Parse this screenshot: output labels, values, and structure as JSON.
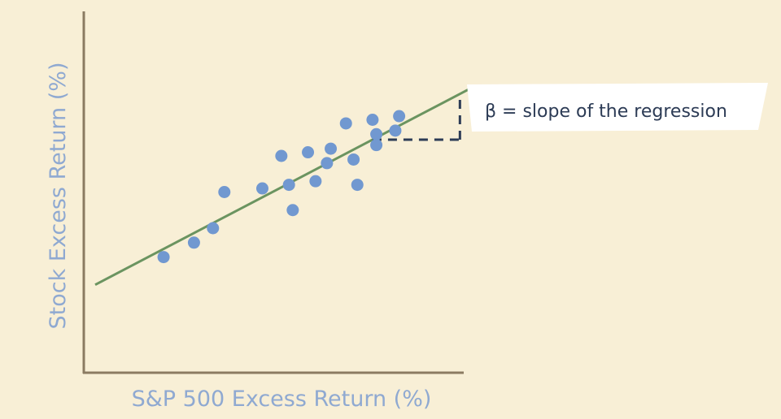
{
  "chart_data": {
    "type": "scatter",
    "xlabel": "S&P 500 Excess Return (%)",
    "ylabel": "Stock Excess Return (%)",
    "xlim": [
      0,
      100
    ],
    "ylim": [
      0,
      100
    ],
    "grid": false,
    "points": [
      {
        "x": 21,
        "y": 32
      },
      {
        "x": 29,
        "y": 36
      },
      {
        "x": 34,
        "y": 40
      },
      {
        "x": 37,
        "y": 50
      },
      {
        "x": 47,
        "y": 51
      },
      {
        "x": 52,
        "y": 60
      },
      {
        "x": 54,
        "y": 52
      },
      {
        "x": 55,
        "y": 45
      },
      {
        "x": 59,
        "y": 61
      },
      {
        "x": 61,
        "y": 53
      },
      {
        "x": 64,
        "y": 58
      },
      {
        "x": 65,
        "y": 62
      },
      {
        "x": 69,
        "y": 69
      },
      {
        "x": 71,
        "y": 59
      },
      {
        "x": 72,
        "y": 52
      },
      {
        "x": 76,
        "y": 70
      },
      {
        "x": 77,
        "y": 66
      },
      {
        "x": 77,
        "y": 63
      },
      {
        "x": 82,
        "y": 67
      },
      {
        "x": 83,
        "y": 71
      }
    ],
    "regression_line": {
      "slope": 0.55,
      "intercept": 22.7
    },
    "annotation": "β = slope of the regression",
    "colors": {
      "background": "#f8efd6",
      "axis": "#8b7b62",
      "points": "#7198d0",
      "line": "#6b9460",
      "dash": "#2c3b55",
      "label": "#8fa9d1",
      "callout_text": "#2c3b55"
    }
  }
}
